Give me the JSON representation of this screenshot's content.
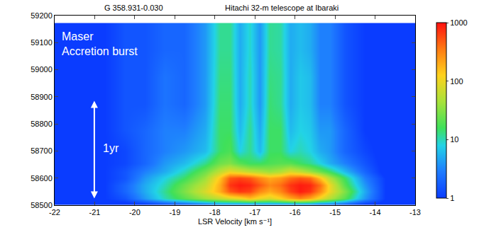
{
  "chart_data": {
    "type": "heatmap",
    "title": "G 358.931-0.030",
    "subtitle": "Hitachi 32-m telescope at Ibaraki",
    "xlabel": "LSR Velocity [km s⁻¹]",
    "annotations": [
      [
        "Maser",
        "Accretion burst"
      ],
      [
        "1yr"
      ]
    ],
    "xlim": [
      -22,
      -13
    ],
    "xticks": [
      -22,
      -21,
      -20,
      -19,
      -18,
      -17,
      -16,
      -15,
      -14,
      -13
    ],
    "ylim": [
      58500,
      59200
    ],
    "yticks": [
      58500,
      58600,
      58700,
      58800,
      58900,
      59000,
      59100,
      59200
    ],
    "grid": false,
    "x": [
      -21.75,
      -21.25,
      -20.75,
      -20.25,
      -19.75,
      -19.25,
      -18.75,
      -18.25,
      -17.875,
      -17.625,
      -17.375,
      -17.125,
      -16.875,
      -16.625,
      -16.375,
      -16.125,
      -15.875,
      -15.625,
      -15.375,
      -15.125,
      -14.75,
      -14.25,
      -13.75,
      -13.25
    ],
    "y": [
      58505,
      58525,
      58550,
      58575,
      58600,
      58625,
      58655,
      58700,
      58775,
      58875,
      58975,
      59075,
      59140
    ],
    "cells": [
      [
        0.8,
        0.8,
        0.8,
        0.8,
        1,
        1.5,
        2,
        3,
        4,
        4,
        4,
        4,
        4,
        4,
        4,
        4,
        4,
        4,
        3,
        3,
        2,
        1,
        0.8,
        0.8
      ],
      [
        0.8,
        0.8,
        1,
        1.5,
        4,
        10,
        20,
        40,
        60,
        80,
        100,
        150,
        100,
        80,
        120,
        200,
        300,
        200,
        100,
        50,
        20,
        4,
        1,
        0.8
      ],
      [
        0.8,
        0.8,
        1,
        2,
        5,
        12,
        30,
        80,
        200,
        500,
        700,
        600,
        300,
        200,
        300,
        600,
        900,
        700,
        300,
        100,
        30,
        5,
        1,
        0.8
      ],
      [
        0.8,
        0.8,
        1,
        2,
        5,
        10,
        25,
        60,
        200,
        700,
        900,
        800,
        500,
        300,
        400,
        700,
        900,
        800,
        400,
        100,
        20,
        4,
        1,
        0.8
      ],
      [
        0.8,
        0.8,
        1,
        1.5,
        4,
        8,
        15,
        40,
        150,
        500,
        600,
        500,
        300,
        200,
        250,
        400,
        500,
        400,
        150,
        50,
        15,
        3,
        1,
        0.8
      ],
      [
        0.8,
        0.8,
        1,
        1.5,
        3,
        5,
        10,
        25,
        60,
        100,
        80,
        60,
        50,
        40,
        50,
        80,
        60,
        40,
        25,
        15,
        6,
        2,
        0.8,
        0.8
      ],
      [
        0.8,
        0.8,
        1,
        1.2,
        2,
        4,
        6,
        12,
        25,
        30,
        20,
        15,
        15,
        18,
        20,
        20,
        15,
        12,
        8,
        5,
        3,
        1.5,
        0.8,
        0.8
      ],
      [
        0.8,
        0.8,
        1,
        1.2,
        2,
        3,
        4,
        6,
        15,
        18,
        8,
        12,
        6,
        15,
        15,
        8,
        10,
        8,
        5,
        4,
        2,
        1.2,
        0.8,
        0.8
      ],
      [
        0.8,
        0.8,
        1,
        1.5,
        2,
        3,
        3,
        5,
        15,
        15,
        6,
        12,
        5,
        15,
        15,
        6,
        8,
        7,
        4,
        4,
        2,
        1,
        0.8,
        0.8
      ],
      [
        0.8,
        0.8,
        1,
        1.5,
        1.5,
        2.5,
        2,
        4,
        14,
        14,
        5,
        10,
        4,
        14,
        12,
        5,
        7,
        6,
        3,
        3,
        1.5,
        1,
        0.8,
        0.8
      ],
      [
        0.8,
        0.8,
        1,
        1.5,
        1.5,
        2.5,
        2,
        4,
        13,
        13,
        5,
        10,
        4,
        13,
        12,
        5,
        7,
        6,
        3,
        3,
        1.5,
        1,
        0.8,
        0.8
      ],
      [
        0.8,
        0.8,
        1,
        1.5,
        1.5,
        2,
        2,
        4,
        12,
        12,
        5,
        9,
        4,
        12,
        11,
        5,
        6,
        5,
        3,
        3,
        1.5,
        1,
        0.8,
        0.8
      ],
      [
        0.8,
        0.8,
        1,
        1.5,
        1.5,
        2,
        2,
        4,
        12,
        12,
        5,
        9,
        4,
        12,
        11,
        5,
        6,
        5,
        3,
        3,
        1.5,
        1,
        0.8,
        0.8
      ]
    ],
    "colorbar": {
      "zlim": [
        1,
        1000
      ],
      "ticks": [
        1,
        10,
        100,
        1000
      ],
      "log": true
    }
  }
}
